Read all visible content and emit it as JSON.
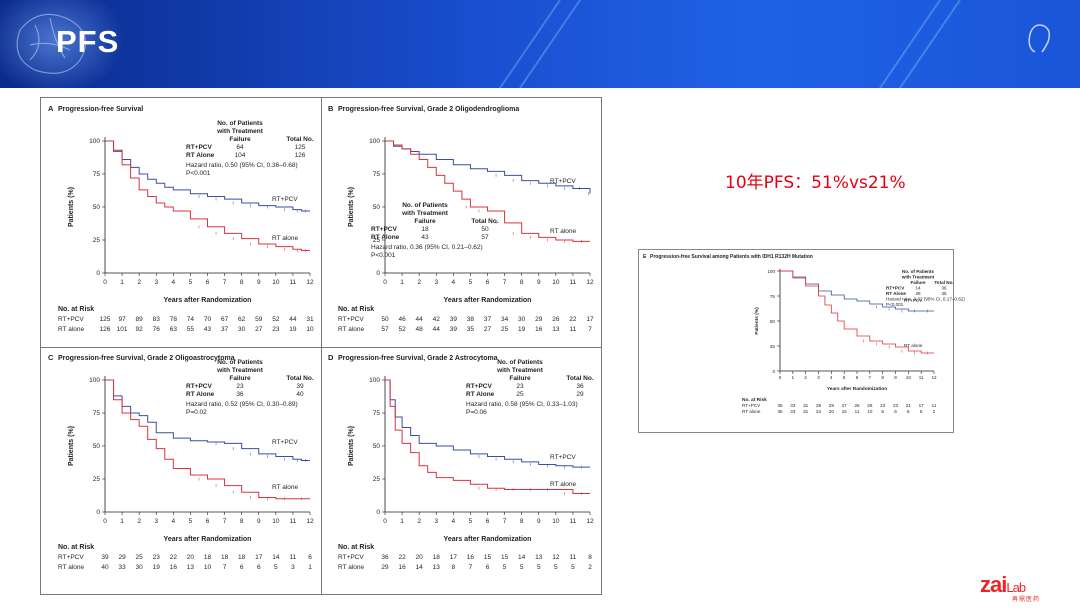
{
  "slide": {
    "title": "PFS",
    "annotation": "10年PFS：51%vs21%",
    "logo_main": "zai",
    "logo_lab": "Lab",
    "logo_sub": "再鼎医药",
    "colors": {
      "pcv": "#3a4fa0",
      "rt": "#d9343c",
      "annotation": "#e60012",
      "banner": "#1a4fd0"
    }
  },
  "chart_data": [
    {
      "id": "A",
      "type": "line",
      "title": "Progression-free Survival",
      "letter": "A",
      "xlabel": "Years after Randomization",
      "ylabel": "Patients (%)",
      "xlim": [
        0,
        12
      ],
      "ylim": [
        0,
        100
      ],
      "xticks": [
        "0",
        "1",
        "2",
        "3",
        "4",
        "5",
        "6",
        "7",
        "8",
        "9",
        "10",
        "11",
        "12"
      ],
      "yticks": [
        "0",
        "25",
        "50",
        "75",
        "100"
      ],
      "table_header": [
        "No. of Patients with Treatment Failure",
        "Total No."
      ],
      "rows": [
        {
          "label": "RT+PCV",
          "failures": "64",
          "total": "125"
        },
        {
          "label": "RT Alone",
          "failures": "104",
          "total": "126"
        }
      ],
      "stats": [
        "Hazard ratio, 0.50 (95% CI, 0.36–0.68)",
        "P<0.001"
      ],
      "series": [
        {
          "name": "RT+PCV",
          "x": [
            0,
            0.5,
            1,
            1.5,
            2,
            2.5,
            3,
            3.5,
            4,
            5,
            6,
            7,
            8,
            9,
            10,
            11,
            11.5,
            12
          ],
          "y": [
            100,
            93,
            86,
            80,
            75,
            71,
            68,
            65,
            63,
            60,
            58,
            56,
            53,
            51,
            50,
            48,
            47,
            47
          ]
        },
        {
          "name": "RT alone",
          "x": [
            0,
            0.5,
            1,
            1.5,
            2,
            2.5,
            3,
            3.5,
            4,
            5,
            6,
            7,
            8,
            9,
            10,
            11,
            11.5,
            12
          ],
          "y": [
            100,
            92,
            82,
            72,
            63,
            58,
            53,
            50,
            47,
            41,
            35,
            30,
            26,
            22,
            20,
            18,
            17,
            17
          ]
        }
      ],
      "curve_labels": [
        "RT+PCV",
        "RT alone"
      ],
      "risk_title": "No. at Risk",
      "risk_rows": [
        {
          "label": "RT+PCV",
          "values": [
            "125",
            "97",
            "89",
            "83",
            "78",
            "74",
            "70",
            "67",
            "62",
            "59",
            "52",
            "44",
            "31"
          ]
        },
        {
          "label": "RT alone",
          "values": [
            "126",
            "101",
            "92",
            "76",
            "63",
            "55",
            "43",
            "37",
            "30",
            "27",
            "23",
            "19",
            "10"
          ]
        }
      ]
    },
    {
      "id": "B",
      "type": "line",
      "title": "Progression-free Survival, Grade 2 Oligodendroglioma",
      "letter": "B",
      "xlabel": "Years after Randomization",
      "ylabel": "Patients (%)",
      "xlim": [
        0,
        12
      ],
      "ylim": [
        0,
        100
      ],
      "xticks": [
        "0",
        "1",
        "2",
        "3",
        "4",
        "5",
        "6",
        "7",
        "8",
        "9",
        "10",
        "11",
        "12"
      ],
      "yticks": [
        "0",
        "25",
        "50",
        "75",
        "100"
      ],
      "table_header": [
        "No. of Patients with Treatment Failure",
        "Total No."
      ],
      "rows": [
        {
          "label": "RT+PCV",
          "failures": "18",
          "total": "50"
        },
        {
          "label": "RT Alone",
          "failures": "43",
          "total": "57"
        }
      ],
      "stats": [
        "Hazard ratio, 0.36 (95% CI, 0.21–0.62)",
        "P<0.001"
      ],
      "series": [
        {
          "name": "RT+PCV",
          "x": [
            0,
            0.5,
            1,
            1.5,
            2,
            3,
            4,
            5,
            6,
            7,
            8,
            9,
            10,
            11,
            11.8,
            12
          ],
          "y": [
            100,
            96,
            94,
            92,
            90,
            86,
            82,
            79,
            77,
            74,
            70,
            68,
            66,
            64,
            64,
            60
          ]
        },
        {
          "name": "RT alone",
          "x": [
            0,
            0.5,
            1,
            1.5,
            2,
            2.5,
            3,
            3.5,
            4,
            4.5,
            5,
            6,
            7,
            8,
            9,
            10,
            11,
            12
          ],
          "y": [
            100,
            97,
            94,
            90,
            86,
            80,
            74,
            68,
            62,
            56,
            50,
            47,
            38,
            30,
            27,
            25,
            24,
            24
          ]
        }
      ],
      "curve_labels": [
        "RT+PCV",
        "RT alone"
      ],
      "risk_title": "No. at Risk",
      "risk_rows": [
        {
          "label": "RT+PCV",
          "values": [
            "50",
            "46",
            "44",
            "42",
            "39",
            "38",
            "37",
            "34",
            "30",
            "29",
            "26",
            "22",
            "17"
          ]
        },
        {
          "label": "RT alone",
          "values": [
            "57",
            "52",
            "48",
            "44",
            "39",
            "35",
            "27",
            "25",
            "19",
            "16",
            "13",
            "11",
            "7"
          ]
        }
      ]
    },
    {
      "id": "C",
      "type": "line",
      "title": "Progression-free Survival, Grade 2 Oligoastrocytoma",
      "letter": "C",
      "xlabel": "Years after Randomization",
      "ylabel": "Patients (%)",
      "xlim": [
        0,
        12
      ],
      "ylim": [
        0,
        100
      ],
      "xticks": [
        "0",
        "1",
        "2",
        "3",
        "4",
        "5",
        "6",
        "7",
        "8",
        "9",
        "10",
        "11",
        "12"
      ],
      "yticks": [
        "0",
        "25",
        "50",
        "75",
        "100"
      ],
      "table_header": [
        "No. of Patients with Treatment Failure",
        "Total No."
      ],
      "rows": [
        {
          "label": "RT+PCV",
          "failures": "23",
          "total": "39"
        },
        {
          "label": "RT Alone",
          "failures": "36",
          "total": "40"
        }
      ],
      "stats": [
        "Hazard ratio, 0.52 (95% CI, 0.30–0.89)",
        "P=0.02"
      ],
      "series": [
        {
          "name": "RT+PCV",
          "x": [
            0,
            0.5,
            1,
            1.5,
            2,
            2.5,
            3,
            4,
            5,
            6,
            7,
            8,
            9,
            10,
            11,
            11.5,
            12
          ],
          "y": [
            100,
            88,
            80,
            75,
            73,
            68,
            60,
            56,
            54,
            53,
            52,
            48,
            44,
            42,
            40,
            39,
            39
          ]
        },
        {
          "name": "RT alone",
          "x": [
            0,
            0.5,
            1,
            1.5,
            2,
            2.5,
            3,
            3.5,
            4,
            5,
            6,
            7,
            8,
            9,
            10,
            11,
            12
          ],
          "y": [
            100,
            85,
            75,
            70,
            65,
            55,
            48,
            40,
            33,
            28,
            25,
            20,
            15,
            11,
            10,
            10,
            10
          ]
        }
      ],
      "curve_labels": [
        "RT+PCV",
        "RT alone"
      ],
      "risk_title": "No. at Risk",
      "risk_rows": [
        {
          "label": "RT+PCV",
          "values": [
            "39",
            "29",
            "25",
            "23",
            "22",
            "20",
            "18",
            "18",
            "18",
            "17",
            "14",
            "11",
            "6"
          ]
        },
        {
          "label": "RT alone",
          "values": [
            "40",
            "33",
            "30",
            "19",
            "16",
            "13",
            "10",
            "7",
            "6",
            "6",
            "5",
            "3",
            "1"
          ]
        }
      ]
    },
    {
      "id": "D",
      "type": "line",
      "title": "Progression-free Survival, Grade 2 Astrocytoma",
      "letter": "D",
      "xlabel": "Years after Randomization",
      "ylabel": "Patients (%)",
      "xlim": [
        0,
        12
      ],
      "ylim": [
        0,
        100
      ],
      "xticks": [
        "0",
        "1",
        "2",
        "3",
        "4",
        "5",
        "6",
        "7",
        "8",
        "9",
        "10",
        "11",
        "12"
      ],
      "yticks": [
        "0",
        "25",
        "50",
        "75",
        "100"
      ],
      "table_header": [
        "No. of Patients with Treatment Failure",
        "Total No."
      ],
      "rows": [
        {
          "label": "RT+PCV",
          "failures": "23",
          "total": "36"
        },
        {
          "label": "RT Alone",
          "failures": "25",
          "total": "29"
        }
      ],
      "stats": [
        "Hazard ratio, 0.58 (95% CI, 0.33–1.03)",
        "P=0.06"
      ],
      "series": [
        {
          "name": "RT+PCV",
          "x": [
            0,
            0.3,
            0.6,
            1,
            1.5,
            2,
            3,
            4,
            5,
            6,
            7,
            8,
            9,
            10,
            11,
            12
          ],
          "y": [
            100,
            85,
            72,
            64,
            58,
            52,
            50,
            47,
            44,
            42,
            40,
            38,
            36,
            35,
            34,
            34
          ]
        },
        {
          "name": "RT alone",
          "x": [
            0,
            0.3,
            0.6,
            1,
            1.5,
            2,
            2.5,
            3,
            4,
            5,
            6,
            7,
            8,
            9,
            10,
            11,
            12
          ],
          "y": [
            100,
            80,
            62,
            52,
            45,
            35,
            30,
            26,
            24,
            21,
            18,
            17,
            17,
            17,
            17,
            14,
            14
          ]
        }
      ],
      "curve_labels": [
        "RT+PCV",
        "RT alone"
      ],
      "risk_title": "No. at Risk",
      "risk_rows": [
        {
          "label": "RT+PCV",
          "values": [
            "36",
            "22",
            "20",
            "18",
            "17",
            "16",
            "15",
            "15",
            "14",
            "13",
            "12",
            "11",
            "8"
          ]
        },
        {
          "label": "RT alone",
          "values": [
            "29",
            "16",
            "14",
            "13",
            "8",
            "7",
            "6",
            "5",
            "5",
            "5",
            "5",
            "5",
            "2"
          ]
        }
      ]
    },
    {
      "id": "E",
      "type": "line",
      "title": "Progression-free Survival among Patients with IDH1 R132H Mutation",
      "letter": "E",
      "xlabel": "Years after Randomization",
      "ylabel": "Patients (%)",
      "xlim": [
        0,
        12
      ],
      "ylim": [
        0,
        100
      ],
      "xticks": [
        "0",
        "1",
        "2",
        "3",
        "4",
        "5",
        "6",
        "7",
        "8",
        "9",
        "10",
        "11",
        "12"
      ],
      "yticks": [
        "0",
        "25",
        "50",
        "75",
        "100"
      ],
      "table_header": [
        "No. of Patients with Treatment Failure",
        "Total No."
      ],
      "rows": [
        {
          "label": "RT+PCV",
          "failures": "14",
          "total": "36"
        },
        {
          "label": "RT Alone",
          "failures": "28",
          "total": "35"
        }
      ],
      "stats": [
        "Hazard ratio, 0.32 (95% CI, 0.17–0.62)",
        "P<0.001"
      ],
      "series": [
        {
          "name": "RT+PCV",
          "x": [
            0,
            1,
            2,
            3,
            4,
            5,
            6,
            7,
            8,
            9,
            10,
            11,
            12
          ],
          "y": [
            100,
            94,
            87,
            80,
            76,
            72,
            70,
            67,
            64,
            62,
            60,
            60,
            60
          ]
        },
        {
          "name": "RT alone",
          "x": [
            0,
            1,
            2,
            3,
            3.5,
            4,
            4.5,
            5,
            6,
            7,
            8,
            9,
            10,
            11,
            12
          ],
          "y": [
            100,
            93,
            85,
            75,
            66,
            58,
            50,
            42,
            35,
            30,
            27,
            24,
            20,
            18,
            18
          ]
        }
      ],
      "curve_labels": [
        "RT+PCV",
        "RT alone"
      ],
      "risk_title": "No. at Risk",
      "risk_rows": [
        {
          "label": "RT+PCV",
          "values": [
            "36",
            "33",
            "31",
            "29",
            "29",
            "27",
            "26",
            "26",
            "23",
            "23",
            "21",
            "17",
            "11"
          ]
        },
        {
          "label": "RT alone",
          "values": [
            "35",
            "33",
            "31",
            "24",
            "20",
            "15",
            "11",
            "10",
            "8",
            "6",
            "6",
            "5",
            "2"
          ]
        }
      ]
    }
  ]
}
